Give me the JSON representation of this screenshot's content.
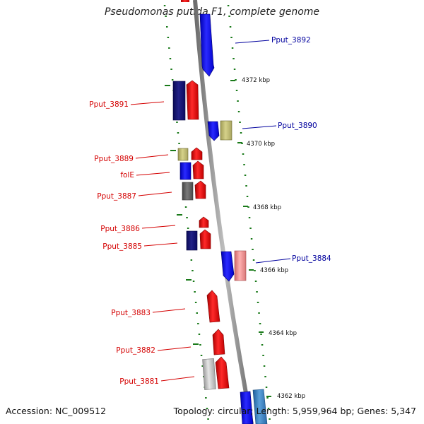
{
  "title": "Pseudomonas putida F1, complete genome",
  "accession": "Accession: NC_009512",
  "topology": "Topology: circular; Length: 5,959,964 bp; Genes: 5,347",
  "colors": {
    "forward_label": "#d40000",
    "reverse_label": "#00009e",
    "tick": "#1a7a1a",
    "backbone": "#8a8a8a"
  },
  "ticks": [
    "4372 kbp",
    "4370 kbp",
    "4368 kbp",
    "4366 kbp",
    "4364 kbp",
    "4362 kbp"
  ],
  "genes": [
    {
      "label": "Pput_3892",
      "strand": "reverse"
    },
    {
      "label": "Pput_3891",
      "strand": "forward"
    },
    {
      "label": "Pput_3890",
      "strand": "reverse"
    },
    {
      "label": "Pput_3889",
      "strand": "forward"
    },
    {
      "label": "folE",
      "strand": "forward"
    },
    {
      "label": "Pput_3887",
      "strand": "forward"
    },
    {
      "label": "Pput_3886",
      "strand": "forward"
    },
    {
      "label": "Pput_3885",
      "strand": "forward"
    },
    {
      "label": "Pput_3884",
      "strand": "reverse"
    },
    {
      "label": "Pput_3883",
      "strand": "forward"
    },
    {
      "label": "Pput_3882",
      "strand": "forward"
    },
    {
      "label": "Pput_3881",
      "strand": "forward"
    }
  ]
}
